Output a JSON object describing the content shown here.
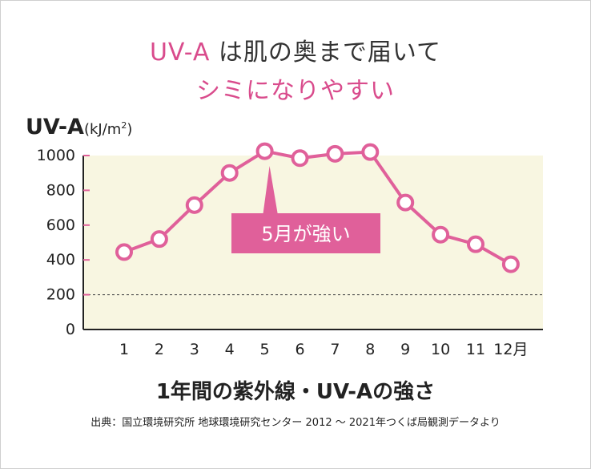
{
  "title": {
    "line1_accent": "UV-A",
    "line1_rest": " は肌の奥まで届いて",
    "line2": "シミになりやすい"
  },
  "ylabel": {
    "main": "UV-A",
    "unit": "(kJ/m"
  },
  "caption": "1年間の紫外線・UV-Aの強さ",
  "source": "出典：国立環境研究所 地球環境研究センター 2012 ～ 2021年つくば局観測データより",
  "annotation": "5月が強い",
  "colors": {
    "line": "#e0609a",
    "accent": "#d94b8c",
    "plot_bg": "#f8f6e1",
    "callout": "#e0609a"
  },
  "chart_data": {
    "type": "line",
    "categories": [
      "1",
      "2",
      "3",
      "4",
      "5",
      "6",
      "7",
      "8",
      "9",
      "10",
      "11",
      "12月"
    ],
    "values": [
      445,
      520,
      715,
      900,
      1025,
      985,
      1010,
      1020,
      730,
      545,
      490,
      375
    ],
    "yticks": [
      0,
      200,
      400,
      600,
      800,
      1000
    ],
    "ylim": [
      0,
      1000
    ],
    "reference_line": 200,
    "grid": false
  }
}
